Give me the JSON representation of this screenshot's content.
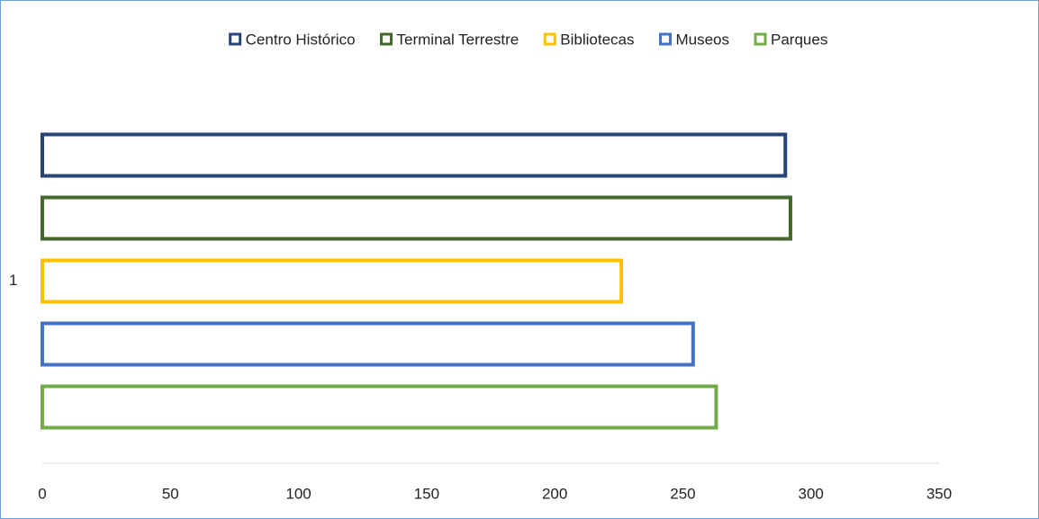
{
  "chart_data": {
    "type": "bar",
    "orientation": "horizontal",
    "categories": [
      "1"
    ],
    "series": [
      {
        "name": "Centro Histórico",
        "color": "#264478",
        "values": [
          290
        ]
      },
      {
        "name": "Terminal Terrestre",
        "color": "#43682b",
        "values": [
          292
        ]
      },
      {
        "name": "Bibliotecas",
        "color": "#ffc000",
        "values": [
          226
        ]
      },
      {
        "name": "Museos",
        "color": "#4472c4",
        "values": [
          254
        ]
      },
      {
        "name": "Parques",
        "color": "#70ad47",
        "values": [
          263
        ]
      }
    ],
    "xlim": [
      0,
      350
    ],
    "xticks": [
      0,
      50,
      100,
      150,
      200,
      250,
      300,
      350
    ],
    "legend": "top",
    "grid": false
  }
}
